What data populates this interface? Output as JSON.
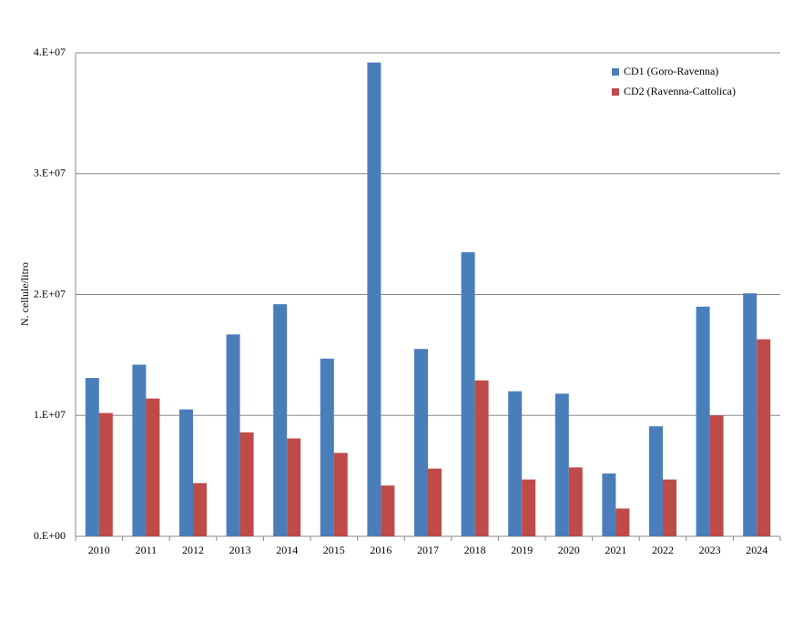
{
  "chart_data": {
    "type": "bar",
    "y_label": "N. cellule/litro",
    "categories": [
      "2010",
      "2011",
      "2012",
      "2013",
      "2014",
      "2015",
      "2016",
      "2017",
      "2018",
      "2019",
      "2020",
      "2021",
      "2022",
      "2023",
      "2024"
    ],
    "series": [
      {
        "name": "CD1 (Goro-Ravenna)",
        "color": "#4a7ebb",
        "values": [
          13100000,
          14200000,
          10500000,
          16700000,
          19200000,
          14700000,
          39200000,
          15500000,
          23500000,
          12000000,
          11800000,
          5200000,
          9100000,
          19000000,
          20100000
        ]
      },
      {
        "name": "CD2 (Ravenna-Cattolica)",
        "color": "#be4b48",
        "values": [
          10200000,
          11400000,
          4400000,
          8600000,
          8100000,
          6900000,
          4200000,
          5600000,
          12900000,
          4700000,
          5700000,
          2300000,
          4700000,
          10000000,
          16300000
        ]
      }
    ],
    "ylim": [
      0,
      40000000
    ],
    "yticks": [
      {
        "value": 0,
        "label": "0.E+00"
      },
      {
        "value": 10000000,
        "label": "1.E+07"
      },
      {
        "value": 20000000,
        "label": "2.E+07"
      },
      {
        "value": 30000000,
        "label": "3.E+07"
      },
      {
        "value": 40000000,
        "label": "4.E+07"
      }
    ],
    "grid": true,
    "legend": "top-right"
  }
}
